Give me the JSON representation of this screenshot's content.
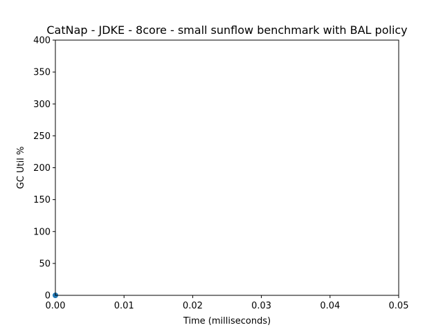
{
  "chart_data": {
    "type": "scatter",
    "title": "CatNap - JDKE - 8core -  small sunflow benchmark with BAL policy",
    "xlabel": "Time (milliseconds)",
    "ylabel": "GC Util %",
    "xlim": [
      0,
      0.05
    ],
    "ylim": [
      0,
      400
    ],
    "xticks": [
      0,
      0.01,
      0.02,
      0.03,
      0.04,
      0.05
    ],
    "xtick_labels": [
      "0.00",
      "0.01",
      "0.02",
      "0.03",
      "0.04",
      "0.05"
    ],
    "yticks": [
      0,
      50,
      100,
      150,
      200,
      250,
      300,
      350,
      400
    ],
    "ytick_labels": [
      "0",
      "50",
      "100",
      "150",
      "200",
      "250",
      "300",
      "350",
      "400"
    ],
    "grid": false,
    "series": [
      {
        "color": "#1f77b4",
        "points": [
          {
            "x": 0,
            "y": 0
          }
        ]
      }
    ]
  }
}
